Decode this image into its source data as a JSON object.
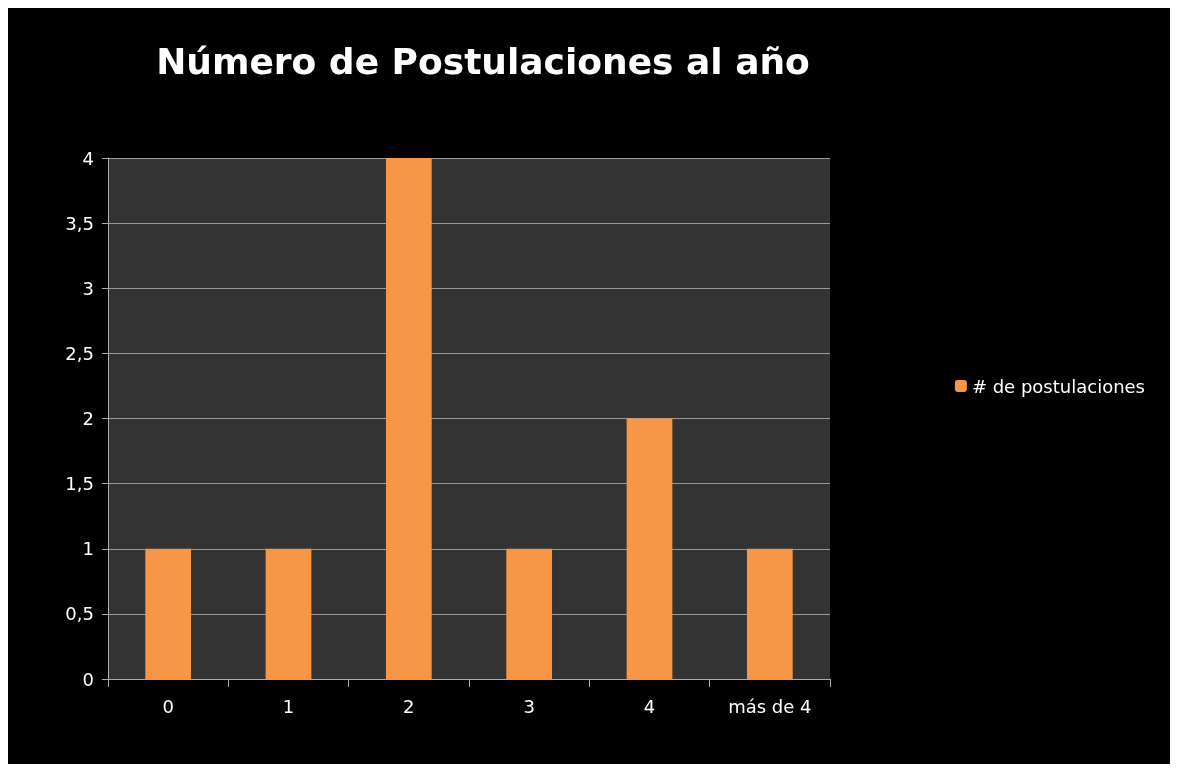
{
  "chart_data": {
    "type": "bar",
    "title": "Número de Postulaciones al año",
    "categories": [
      "0",
      "1",
      "2",
      "3",
      "4",
      "más de 4"
    ],
    "series": [
      {
        "name": "# de postulaciones",
        "color": "#f79646",
        "values": [
          1,
          1,
          4,
          1,
          2,
          1
        ]
      }
    ],
    "ylim": [
      0,
      4
    ],
    "yticks": [
      0,
      {
        "value": 0.5,
        "label": "0,5"
      },
      1,
      {
        "value": 1.5,
        "label": "1,5"
      },
      2,
      {
        "value": 2.5,
        "label": "2,5"
      },
      3,
      {
        "value": 3.5,
        "label": "3,5"
      },
      4
    ],
    "grid": "y",
    "legend": "right"
  }
}
